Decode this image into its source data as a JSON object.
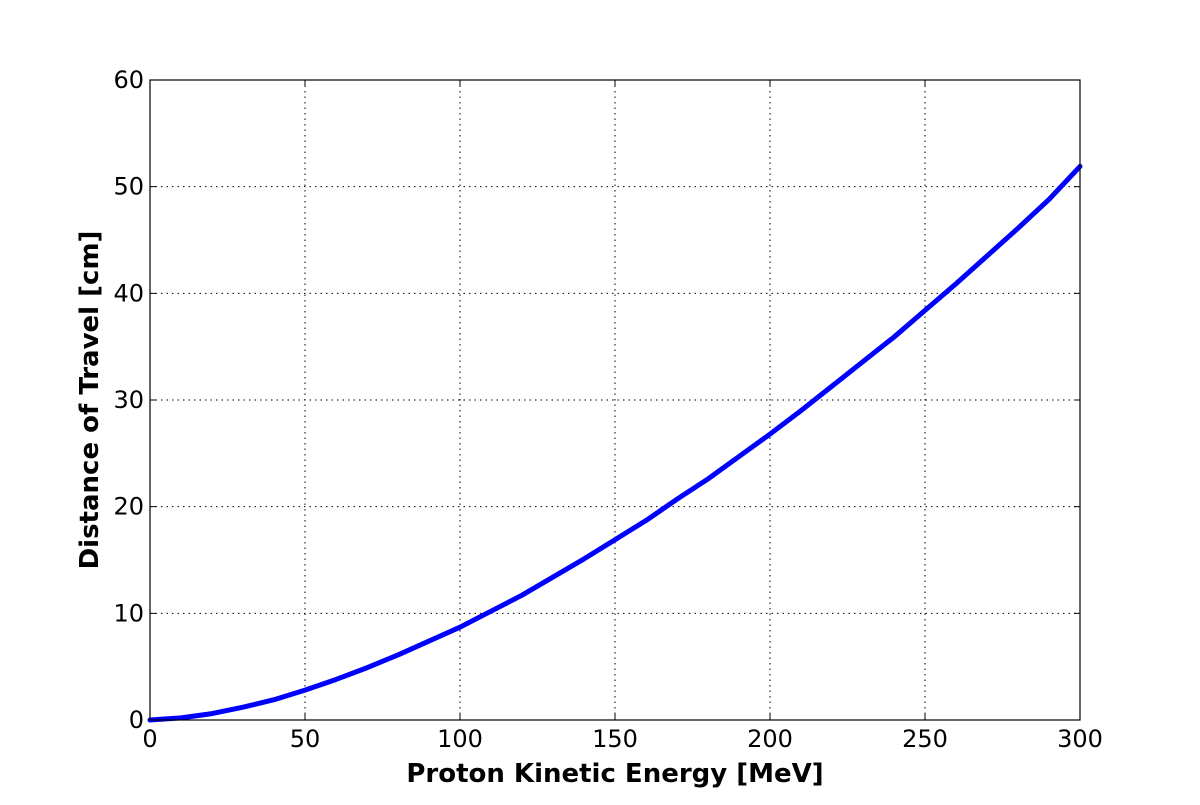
{
  "chart_data": {
    "type": "line",
    "title": "",
    "xlabel": "Proton Kinetic Energy [MeV]",
    "ylabel": "Distance of Travel [cm]",
    "xlim": [
      0,
      300
    ],
    "ylim": [
      0,
      60
    ],
    "x_ticks": [
      0,
      50,
      100,
      150,
      200,
      250,
      300
    ],
    "y_ticks": [
      0,
      10,
      20,
      30,
      40,
      50,
      60
    ],
    "x_tick_labels": [
      "0",
      "50",
      "100",
      "150",
      "200",
      "250",
      "300"
    ],
    "y_tick_labels": [
      "0",
      "10",
      "20",
      "30",
      "40",
      "50",
      "60"
    ],
    "grid": true,
    "legend": "none",
    "series": [
      {
        "color": "#0000ff",
        "x": [
          0,
          10,
          20,
          30,
          40,
          50,
          60,
          70,
          80,
          90,
          100,
          110,
          120,
          130,
          140,
          150,
          160,
          170,
          180,
          190,
          200,
          210,
          220,
          230,
          240,
          250,
          260,
          270,
          280,
          290,
          300
        ],
        "y": [
          0,
          0.2,
          0.6,
          1.2,
          1.9,
          2.8,
          3.8,
          4.9,
          6.1,
          7.4,
          8.7,
          10.2,
          11.7,
          13.4,
          15.1,
          16.9,
          18.7,
          20.7,
          22.6,
          24.7,
          26.8,
          29.0,
          31.3,
          33.6,
          35.9,
          38.4,
          40.9,
          43.5,
          46.1,
          48.8,
          51.9
        ]
      }
    ]
  }
}
